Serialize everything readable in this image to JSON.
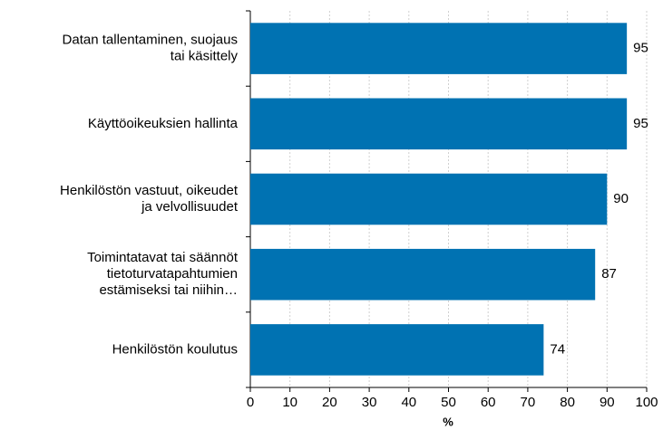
{
  "chart_data": {
    "type": "bar",
    "orientation": "horizontal",
    "x_label": "%",
    "categories": [
      "Datan tallentaminen, suojaus\ntai käsittely",
      "Käyttöoikeuksien hallinta",
      "Henkilöstön vastuut, oikeudet\nja velvollisuudet",
      "Toimintatavat tai säännöt\ntietoturvatapahtumien\nestämiseksi tai niihin…",
      "Henkilöstön koulutus"
    ],
    "values": [
      95,
      95,
      90,
      87,
      74
    ],
    "color": "#0072b2",
    "xlim": [
      0,
      100
    ],
    "xticks": [
      0,
      10,
      20,
      30,
      40,
      50,
      60,
      70,
      80,
      90,
      100
    ],
    "grid": true
  }
}
